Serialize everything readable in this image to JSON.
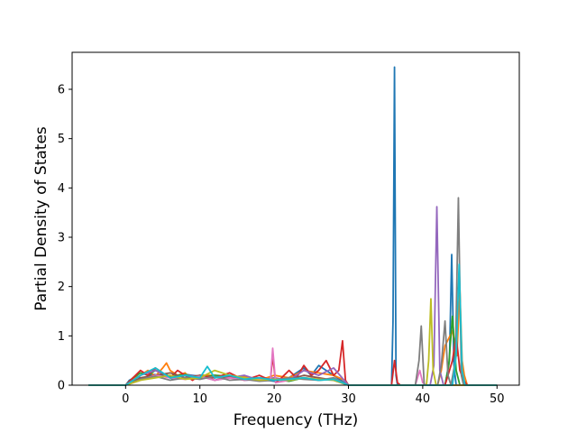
{
  "chart_data": {
    "type": "line",
    "title": "",
    "xlabel": "Frequency (THz)",
    "ylabel": "Partial Density of States",
    "xlim": [
      -7.2,
      53
    ],
    "ylim": [
      0,
      6.75
    ],
    "xticks": [
      0,
      10,
      20,
      30,
      40,
      50
    ],
    "yticks": [
      0,
      1,
      2,
      3,
      4,
      5,
      6
    ],
    "grid": false,
    "legend": "none",
    "series": [
      {
        "color": "#1f77b4",
        "x": [
          -5,
          0,
          0.5,
          1.5,
          2.5,
          3.5,
          5,
          6.5,
          8,
          10,
          12,
          14,
          16,
          18,
          20,
          22,
          24,
          25,
          26,
          28,
          29.5,
          30,
          35.8,
          36,
          36.2,
          36.4,
          36.6,
          37,
          43,
          43.6,
          43.9,
          44.2,
          44.5,
          45,
          50
        ],
        "y": [
          0,
          0,
          0.1,
          0.18,
          0.12,
          0.22,
          0.2,
          0.12,
          0.22,
          0.18,
          0.15,
          0.2,
          0.1,
          0.12,
          0.08,
          0.15,
          0.35,
          0.2,
          0.4,
          0.2,
          0.05,
          0,
          0,
          1.3,
          6.45,
          0.2,
          0,
          0,
          0,
          0.5,
          2.65,
          0.4,
          0,
          0,
          0
        ]
      },
      {
        "color": "#ff7f0e",
        "x": [
          -5,
          0,
          1,
          2,
          3,
          4,
          5,
          5.5,
          6,
          7,
          8,
          9,
          10,
          12,
          14,
          16,
          18,
          20,
          22,
          24,
          26,
          28,
          29.5,
          30,
          42,
          42.5,
          43,
          44,
          44.6,
          45,
          45.3,
          45.6,
          46,
          50
        ],
        "y": [
          0,
          0,
          0.12,
          0.2,
          0.3,
          0.18,
          0.35,
          0.45,
          0.3,
          0.2,
          0.25,
          0.1,
          0.2,
          0.2,
          0.15,
          0.18,
          0.1,
          0.2,
          0.15,
          0.3,
          0.25,
          0.2,
          0.1,
          0,
          0,
          0.3,
          0.8,
          1.1,
          0.6,
          1.95,
          0.5,
          0.2,
          0,
          0
        ]
      },
      {
        "color": "#2ca02c",
        "x": [
          -5,
          0,
          1,
          2,
          3,
          4,
          6,
          8,
          10,
          12,
          14,
          16,
          18,
          20,
          22,
          24,
          26,
          28,
          30,
          43,
          43.5,
          44,
          44.5,
          45,
          50
        ],
        "y": [
          0,
          0,
          0.15,
          0.25,
          0.2,
          0.3,
          0.18,
          0.22,
          0.15,
          0.2,
          0.18,
          0.12,
          0.1,
          0.12,
          0.08,
          0.15,
          0.1,
          0.12,
          0,
          0,
          0.4,
          1.4,
          0.3,
          0,
          0
        ]
      },
      {
        "color": "#d62728",
        "x": [
          -5,
          0,
          1,
          2,
          3,
          4,
          5,
          6,
          7,
          8,
          9,
          10,
          12,
          14,
          16,
          18,
          19.5,
          19.8,
          20.2,
          21,
          22,
          23,
          24,
          25,
          26,
          27,
          28,
          28.7,
          29.2,
          29.6,
          30,
          35.8,
          36.2,
          36.6,
          37,
          43,
          44,
          44.5,
          45,
          45.5,
          46,
          50
        ],
        "y": [
          0,
          0,
          0.15,
          0.3,
          0.2,
          0.35,
          0.25,
          0.15,
          0.3,
          0.2,
          0.1,
          0.2,
          0.15,
          0.25,
          0.1,
          0.2,
          0.1,
          0.6,
          0.05,
          0.15,
          0.3,
          0.15,
          0.4,
          0.2,
          0.3,
          0.5,
          0.2,
          0.3,
          0.9,
          0.1,
          0,
          0,
          0.5,
          0.05,
          0,
          0,
          0.5,
          1.0,
          0.3,
          0.1,
          0,
          0
        ]
      },
      {
        "color": "#9467bd",
        "x": [
          -5,
          0,
          2,
          4,
          6,
          8,
          10,
          12,
          14,
          16,
          18,
          20,
          22,
          24,
          26,
          28,
          30,
          41,
          41.5,
          41.9,
          42.3,
          42.8,
          50
        ],
        "y": [
          0,
          0,
          0.2,
          0.3,
          0.15,
          0.2,
          0.18,
          0.1,
          0.15,
          0.2,
          0.1,
          0.15,
          0.1,
          0.3,
          0.2,
          0.35,
          0,
          0,
          0.4,
          3.62,
          0.3,
          0,
          0
        ]
      },
      {
        "color": "#8c564b",
        "x": [
          -5,
          0,
          2,
          4,
          6,
          8,
          10,
          12,
          14,
          16,
          18,
          20,
          22,
          24,
          26,
          28,
          30,
          50
        ],
        "y": [
          0,
          0,
          0.15,
          0.2,
          0.25,
          0.15,
          0.2,
          0.1,
          0.18,
          0.12,
          0.15,
          0.1,
          0.12,
          0.2,
          0.15,
          0.1,
          0,
          0
        ]
      },
      {
        "color": "#e377c2",
        "x": [
          -5,
          0,
          2,
          4,
          6,
          8,
          10,
          12,
          14,
          16,
          18,
          19.5,
          19.8,
          20.2,
          22,
          24,
          26,
          28,
          30,
          39,
          39.6,
          40,
          40.5,
          50
        ],
        "y": [
          0,
          0,
          0.1,
          0.2,
          0.15,
          0.12,
          0.18,
          0.1,
          0.15,
          0.1,
          0.12,
          0.1,
          0.75,
          0.05,
          0.1,
          0.15,
          0.12,
          0.1,
          0,
          0,
          0.3,
          0.05,
          0,
          0
        ]
      },
      {
        "color": "#7f7f7f",
        "x": [
          -5,
          0,
          2,
          4,
          6,
          8,
          10,
          12,
          14,
          16,
          18,
          20,
          22,
          24,
          26,
          28,
          30,
          39,
          39.5,
          39.8,
          40.2,
          42,
          42.5,
          43,
          43.4,
          43.8,
          44.4,
          44.8,
          45.2,
          45.5,
          50
        ],
        "y": [
          0,
          0,
          0.12,
          0.18,
          0.1,
          0.15,
          0.12,
          0.18,
          0.1,
          0.12,
          0.08,
          0.1,
          0.15,
          0.12,
          0.1,
          0.15,
          0,
          0,
          0.5,
          1.2,
          0,
          0,
          0.4,
          1.3,
          0.2,
          0,
          0.5,
          3.8,
          0.2,
          0,
          0
        ]
      },
      {
        "color": "#bcbd22",
        "x": [
          -5,
          0,
          2,
          4,
          6,
          8,
          10,
          12,
          14,
          16,
          18,
          20,
          22,
          24,
          26,
          28,
          30,
          40.5,
          40.8,
          41.1,
          41.4,
          41.8,
          50
        ],
        "y": [
          0,
          0,
          0.1,
          0.15,
          0.2,
          0.12,
          0.15,
          0.3,
          0.2,
          0.15,
          0.1,
          0.12,
          0.1,
          0.15,
          0.12,
          0.1,
          0,
          0,
          0.5,
          1.75,
          0.3,
          0,
          0
        ]
      },
      {
        "color": "#17becf",
        "x": [
          -5,
          0,
          2,
          4,
          6,
          8,
          10,
          11,
          12,
          14,
          16,
          18,
          20,
          22,
          24,
          26,
          28,
          30,
          44,
          44.5,
          44.9,
          45.3,
          45.7,
          50
        ],
        "y": [
          0,
          0,
          0.2,
          0.35,
          0.15,
          0.2,
          0.15,
          0.38,
          0.15,
          0.2,
          0.12,
          0.15,
          0.1,
          0.12,
          0.15,
          0.1,
          0.12,
          0,
          0,
          0.6,
          2.45,
          0.3,
          0,
          0
        ]
      }
    ]
  }
}
